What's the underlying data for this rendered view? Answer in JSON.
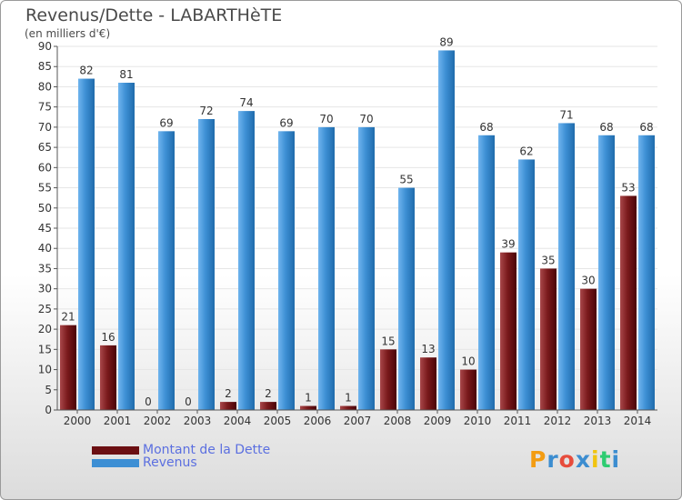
{
  "title": "Revenus/Dette - LABARTHèTE",
  "subtitle": "(en milliers d'€)",
  "chart_data": {
    "type": "bar",
    "categories": [
      "2000",
      "2001",
      "2002",
      "2003",
      "2004",
      "2005",
      "2006",
      "2007",
      "2008",
      "2009",
      "2010",
      "2011",
      "2012",
      "2013",
      "2014"
    ],
    "series": [
      {
        "name": "Montant de la Dette",
        "values": [
          21,
          16,
          0,
          0,
          2,
          2,
          1,
          1,
          15,
          13,
          10,
          39,
          35,
          30,
          53
        ],
        "color": "#7a1a1c"
      },
      {
        "name": "Revenus",
        "values": [
          82,
          81,
          69,
          72,
          74,
          69,
          70,
          70,
          55,
          89,
          68,
          62,
          71,
          68,
          68
        ],
        "color": "#3d8fd4"
      }
    ],
    "ylim": [
      0,
      90
    ],
    "yticks": [
      0,
      5,
      10,
      15,
      20,
      25,
      30,
      35,
      40,
      45,
      50,
      55,
      60,
      65,
      70,
      75,
      80,
      85,
      90
    ],
    "grid": true,
    "legend": "bottom-left"
  },
  "legend": {
    "debt_label": "Montant de la Dette",
    "revenue_label": "Revenus",
    "debt_color": "#6b0f12",
    "revenue_color": "#3d8fd4"
  },
  "logo": {
    "text": "Proxiti",
    "letters": [
      "P",
      "r",
      "o",
      "x",
      "i",
      "t",
      "i"
    ],
    "colors": [
      "#f39c12",
      "#3c8dd0",
      "#e74c3c",
      "#3c8dd0",
      "#f1c40f",
      "#2ecc71",
      "#3c8dd0"
    ]
  }
}
